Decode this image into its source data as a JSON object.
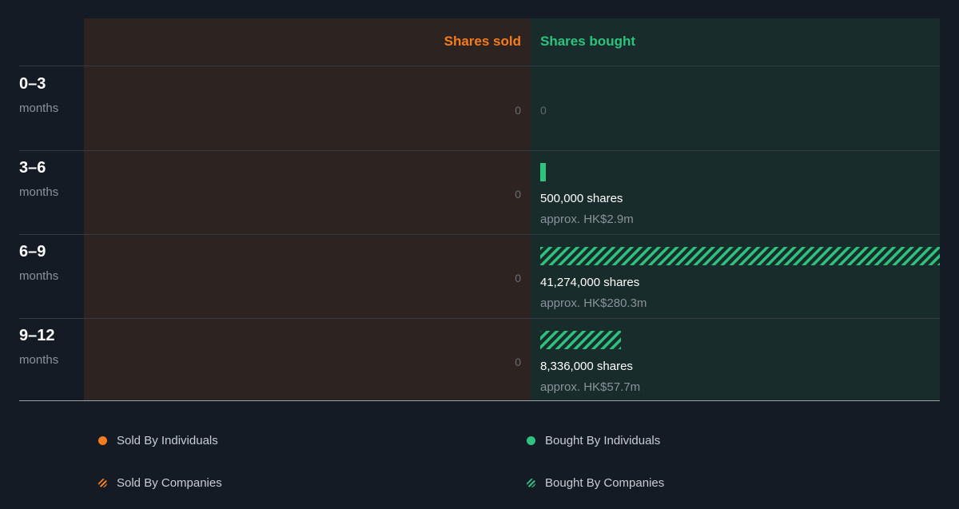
{
  "chart_data": {
    "type": "bar",
    "headers": {
      "sold": "Shares sold",
      "bought": "Shares bought"
    },
    "periods": [
      {
        "range": "0–3",
        "unit": "months",
        "sold_label": "0",
        "bought_label": "0",
        "bought_shares_text": "",
        "bought_value_text": "",
        "bought_shares": 0,
        "bought_by": "none"
      },
      {
        "range": "3–6",
        "unit": "months",
        "sold_label": "0",
        "bought_label": "",
        "bought_shares_text": "500,000 shares",
        "bought_value_text": "approx. HK$2.9m",
        "bought_shares": 500000,
        "bought_by": "individuals"
      },
      {
        "range": "6–9",
        "unit": "months",
        "sold_label": "0",
        "bought_label": "",
        "bought_shares_text": "41,274,000 shares",
        "bought_value_text": "approx. HK$280.3m",
        "bought_shares": 41274000,
        "bought_by": "companies"
      },
      {
        "range": "9–12",
        "unit": "months",
        "sold_label": "0",
        "bought_label": "",
        "bought_shares_text": "8,336,000 shares",
        "bought_value_text": "approx. HK$57.7m",
        "bought_shares": 8336000,
        "bought_by": "companies"
      }
    ],
    "sold_values": [
      0,
      0,
      0,
      0
    ],
    "bought_values": [
      0,
      500000,
      41274000,
      8336000
    ],
    "colors": {
      "sold": "#f57c1f",
      "bought": "#2ec27e",
      "sold_bg": "#2d2321",
      "bought_bg": "#182c2b",
      "page_bg": "#151b24"
    }
  },
  "legend": [
    {
      "label": "Sold By Individuals",
      "icon": "solid-dot-icon",
      "color": "#f57c1f"
    },
    {
      "label": "Bought By Individuals",
      "icon": "solid-dot-icon",
      "color": "#2ec27e"
    },
    {
      "label": "Sold By Companies",
      "icon": "hatched-dot-icon",
      "color": "#f57c1f"
    },
    {
      "label": "Bought By Companies",
      "icon": "hatched-dot-icon",
      "color": "#2ec27e"
    }
  ]
}
